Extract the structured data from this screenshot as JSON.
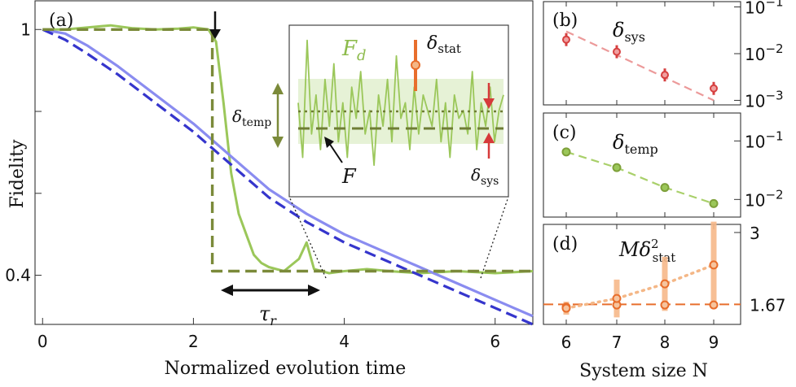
{
  "chart_data": [
    {
      "panel": "a",
      "type": "line",
      "panel_label": "(a)",
      "xlabel": "Normalized evolution time",
      "ylabel": "Fidelity",
      "xlim": [
        -0.1,
        6.5
      ],
      "ylim": [
        0.28,
        1.07
      ],
      "xticks": [
        0,
        2,
        4,
        6
      ],
      "xtick_labels": [
        "0",
        "2",
        "4",
        "6"
      ],
      "yticks": [
        0.4,
        0.6,
        0.8,
        1.0
      ],
      "ytick_labels": [
        "0.4",
        "",
        "",
        "1"
      ],
      "series": [
        {
          "name": "green measured fidelity",
          "color": "#9bc75a",
          "x": [
            0,
            0.3,
            0.6,
            0.9,
            1.2,
            1.5,
            1.8,
            2.0,
            2.2,
            2.3,
            2.4,
            2.5,
            2.6,
            2.7,
            2.8,
            2.9,
            3.0,
            3.2,
            3.4,
            3.5,
            3.6,
            3.8,
            4.0,
            4.3,
            4.6,
            5.0,
            5.5,
            6.0,
            6.5
          ],
          "values": [
            1.0,
            1.0,
            1.005,
            1.01,
            1.003,
            1.0,
            1.002,
            1.005,
            1.0,
            0.97,
            0.82,
            0.65,
            0.55,
            0.5,
            0.45,
            0.43,
            0.42,
            0.41,
            0.44,
            0.48,
            0.415,
            0.405,
            0.41,
            0.415,
            0.41,
            0.405,
            0.41,
            0.405,
            0.41
          ]
        },
        {
          "name": "purple simulation",
          "color": "#8a8cf0",
          "x": [
            0,
            0.3,
            0.6,
            1.0,
            1.5,
            2.0,
            2.5,
            3.0,
            3.5,
            4.0,
            4.5,
            5.0,
            5.5,
            6.0,
            6.5
          ],
          "values": [
            1.0,
            0.99,
            0.96,
            0.91,
            0.84,
            0.77,
            0.69,
            0.61,
            0.55,
            0.5,
            0.46,
            0.42,
            0.38,
            0.34,
            0.3
          ]
        },
        {
          "name": "blue dashed prediction",
          "color": "#3535cc",
          "x": [
            0,
            0.3,
            0.6,
            1.0,
            1.5,
            2.0,
            2.5,
            3.0,
            3.5,
            4.0,
            4.5,
            5.0,
            5.5,
            6.0,
            6.5
          ],
          "values": [
            1.0,
            0.975,
            0.94,
            0.89,
            0.82,
            0.75,
            0.67,
            0.59,
            0.53,
            0.48,
            0.44,
            0.4,
            0.36,
            0.32,
            0.28
          ]
        },
        {
          "name": "olive dashed step F",
          "color": "#7b8a3a",
          "x": [
            0,
            2.25,
            2.25,
            6.5
          ],
          "values": [
            1.0,
            1.0,
            0.41,
            0.41
          ]
        }
      ],
      "annotations": {
        "tau_label": "τ",
        "tau_sub": "r",
        "tau_range": [
          2.25,
          3.5
        ]
      },
      "inset": {
        "fd_label": "F",
        "fd_sub": "d",
        "f_label": "F",
        "delta_stat": "δ",
        "delta_stat_sub": "stat",
        "delta_temp": "δ",
        "delta_temp_sub": "temp",
        "delta_sys": "δ",
        "delta_sys_sub": "sys",
        "values": [
          0.55,
          0.2,
          0.95,
          0.35,
          0.6,
          0.25,
          0.7,
          0.4,
          0.8,
          0.3,
          0.55,
          0.2,
          0.65,
          0.45,
          0.75,
          0.35,
          0.5,
          0.15,
          0.6,
          0.4,
          0.7,
          0.3,
          0.85,
          0.45,
          0.55,
          0.25,
          0.65,
          0.35,
          0.6,
          0.5,
          0.4,
          0.7,
          0.3,
          0.55,
          0.2,
          0.6,
          0.45,
          0.5,
          0.35,
          0.75,
          0.25,
          0.55,
          0.4,
          0.65,
          0.3,
          0.5,
          0.6
        ]
      }
    },
    {
      "panel": "b",
      "type": "scatter",
      "panel_label": "(b)",
      "title": "δ",
      "title_sub": "sys",
      "yscale": "log",
      "ylim": [
        0.001,
        0.1
      ],
      "ytick_labels": [
        "10",
        "10",
        "10"
      ],
      "ytick_exps": [
        "−1",
        "−2",
        "−3"
      ],
      "x": [
        6,
        7,
        8,
        9
      ],
      "values": [
        0.02,
        0.011,
        0.0035,
        0.0018
      ],
      "fit": [
        0.03,
        0.001
      ],
      "color": "#d64040"
    },
    {
      "panel": "c",
      "type": "scatter",
      "panel_label": "(c)",
      "title": "δ",
      "title_sub": "temp",
      "yscale": "log",
      "ylim": [
        0.005,
        0.3
      ],
      "ytick_labels": [
        "10",
        "10"
      ],
      "ytick_exps": [
        "−1",
        "−2"
      ],
      "x": [
        6,
        7,
        8,
        9
      ],
      "values": [
        0.065,
        0.035,
        0.016,
        0.0085
      ],
      "color": "#7ea03a"
    },
    {
      "panel": "d",
      "type": "scatter",
      "panel_label": "(d)",
      "title": "Mδ",
      "title_sup": "2",
      "title_sub": "stat",
      "ylim": [
        1.3,
        3.2
      ],
      "ytick_labels": [
        "3",
        "1.67"
      ],
      "yticks": [
        3,
        1.67
      ],
      "xlabel": "System size N",
      "xtick_labels": [
        "6",
        "7",
        "8",
        "9"
      ],
      "x": [
        6,
        7,
        8,
        9
      ],
      "series_upper": [
        1.6,
        1.78,
        2.05,
        2.4
      ],
      "series_lower": [
        1.62,
        1.66,
        1.66,
        1.66
      ],
      "err_upper": [
        0.12,
        0.35,
        0.5,
        0.8
      ],
      "err_lower": [
        0.1,
        0.25,
        0.3,
        0.3
      ],
      "reference": 1.67,
      "color": "#e86e2c"
    }
  ]
}
